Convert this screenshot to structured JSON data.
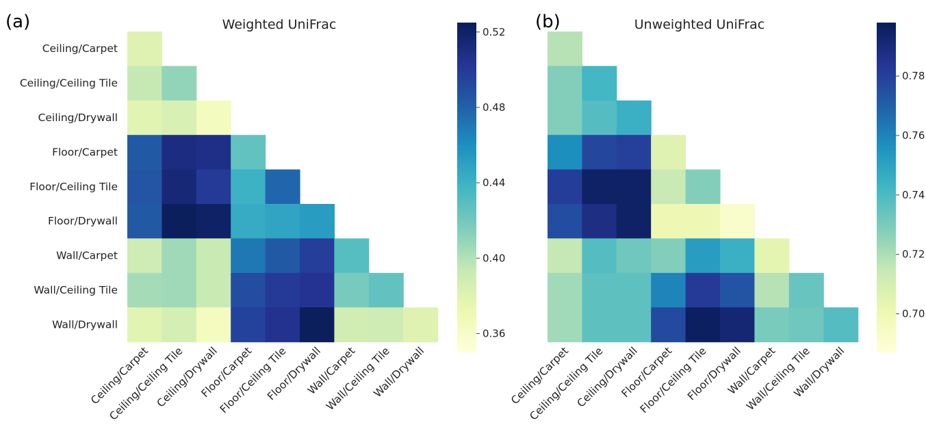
{
  "chart_data": [
    {
      "type": "heatmap",
      "panel_label": "(a)",
      "title": "Weighted UniFrac",
      "categories": [
        "Ceiling/Carpet",
        "Ceiling/Ceiling Tile",
        "Ceiling/Drywall",
        "Floor/Carpet",
        "Floor/Ceiling Tile",
        "Floor/Drywall",
        "Wall/Carpet",
        "Wall/Ceiling Tile",
        "Wall/Drywall"
      ],
      "mask": "lower-triangle including diagonal",
      "values": [
        [
          0.38
        ],
        [
          0.394,
          0.41
        ],
        [
          0.378,
          0.384,
          0.364
        ],
        [
          0.484,
          0.51,
          0.508,
          0.426
        ],
        [
          0.486,
          0.514,
          0.5,
          0.44,
          0.478
        ],
        [
          0.484,
          0.523,
          0.52,
          0.444,
          0.448,
          0.452
        ],
        [
          0.39,
          0.406,
          0.392,
          0.47,
          0.484,
          0.498,
          0.43
        ],
        [
          0.404,
          0.406,
          0.392,
          0.49,
          0.5,
          0.504,
          0.418,
          0.426
        ],
        [
          0.378,
          0.386,
          0.364,
          0.496,
          0.505,
          0.523,
          0.388,
          0.39,
          0.38
        ]
      ],
      "colorbar": {
        "min": 0.35,
        "max": 0.525,
        "ticks": [
          "0.36",
          "0.40",
          "0.44",
          "0.48",
          "0.52"
        ],
        "colormap": "YlGnBu"
      }
    },
    {
      "type": "heatmap",
      "panel_label": "(b)",
      "title": "Unweighted UniFrac",
      "categories": [
        "Ceiling/Carpet",
        "Ceiling/Ceiling Tile",
        "Ceiling/Drywall",
        "Floor/Carpet",
        "Floor/Ceiling Tile",
        "Floor/Drywall",
        "Wall/Carpet",
        "Wall/Ceiling Tile",
        "Wall/Drywall"
      ],
      "mask": "lower-triangle including diagonal",
      "values": [
        [
          0.718
        ],
        [
          0.728,
          0.742
        ],
        [
          0.728,
          0.738,
          0.745
        ],
        [
          0.757,
          0.778,
          0.78,
          0.706
        ],
        [
          0.781,
          0.795,
          0.795,
          0.714,
          0.728
        ],
        [
          0.776,
          0.788,
          0.795,
          0.7,
          0.7,
          0.692
        ],
        [
          0.715,
          0.738,
          0.732,
          0.728,
          0.752,
          0.745,
          0.704
        ],
        [
          0.722,
          0.736,
          0.736,
          0.76,
          0.782,
          0.774,
          0.718,
          0.734
        ],
        [
          0.722,
          0.736,
          0.736,
          0.777,
          0.796,
          0.792,
          0.73,
          0.732,
          0.738
        ]
      ],
      "colorbar": {
        "min": 0.687,
        "max": 0.798,
        "ticks": [
          "0.70",
          "0.72",
          "0.74",
          "0.76",
          "0.78"
        ],
        "colormap": "YlGnBu"
      }
    }
  ]
}
